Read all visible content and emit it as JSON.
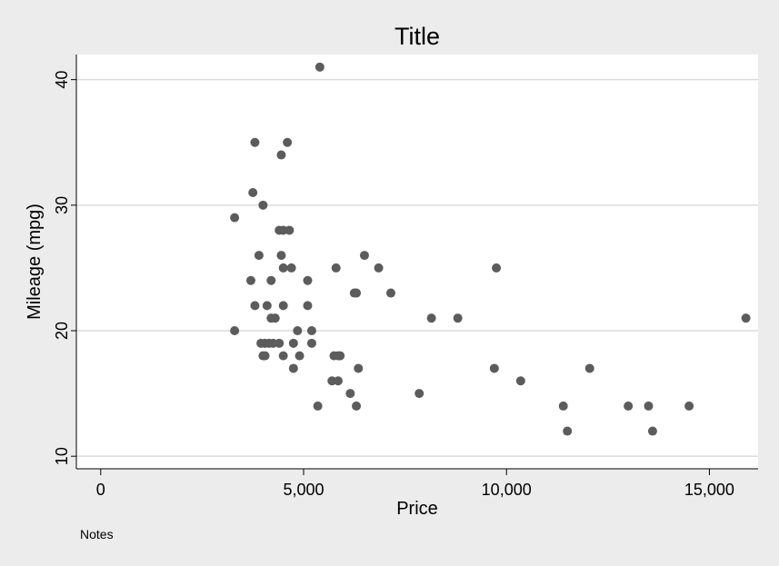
{
  "chart_data": {
    "type": "scatter",
    "title": "Title",
    "xlabel": "Price",
    "ylabel": "Mileage (mpg)",
    "note": "Notes",
    "xlim": [
      -600,
      16200
    ],
    "ylim": [
      9,
      42
    ],
    "xticks": [
      {
        "value": 0,
        "label": "0"
      },
      {
        "value": 5000,
        "label": "5,000"
      },
      {
        "value": 10000,
        "label": "10,000"
      },
      {
        "value": 15000,
        "label": "15,000"
      }
    ],
    "yticks": [
      {
        "value": 10,
        "label": "10"
      },
      {
        "value": 20,
        "label": "20"
      },
      {
        "value": 30,
        "label": "30"
      },
      {
        "value": 40,
        "label": "40"
      }
    ],
    "grid": "horizontal",
    "colors": {
      "marker": "#5c5c5c",
      "plot_bg": "#ffffff",
      "outer_bg": "#ececec",
      "grid": "#dcdcdc"
    },
    "series": [
      {
        "points": [
          [
            3300,
            29
          ],
          [
            3300,
            20
          ],
          [
            3700,
            24
          ],
          [
            3750,
            31
          ],
          [
            3800,
            35
          ],
          [
            3800,
            22
          ],
          [
            3900,
            26
          ],
          [
            3950,
            19
          ],
          [
            4000,
            30
          ],
          [
            4000,
            18
          ],
          [
            4050,
            18
          ],
          [
            4050,
            19
          ],
          [
            4100,
            22
          ],
          [
            4150,
            19
          ],
          [
            4200,
            24
          ],
          [
            4200,
            21
          ],
          [
            4250,
            19
          ],
          [
            4300,
            21
          ],
          [
            4400,
            28
          ],
          [
            4400,
            19
          ],
          [
            4450,
            34
          ],
          [
            4450,
            26
          ],
          [
            4500,
            28
          ],
          [
            4500,
            25
          ],
          [
            4500,
            22
          ],
          [
            4500,
            18
          ],
          [
            4600,
            35
          ],
          [
            4650,
            28
          ],
          [
            4700,
            25
          ],
          [
            4750,
            19
          ],
          [
            4750,
            17
          ],
          [
            4850,
            20
          ],
          [
            4900,
            18
          ],
          [
            5100,
            24
          ],
          [
            5100,
            22
          ],
          [
            5200,
            20
          ],
          [
            5200,
            19
          ],
          [
            5350,
            14
          ],
          [
            5400,
            41
          ],
          [
            5700,
            16
          ],
          [
            5750,
            18
          ],
          [
            5800,
            25
          ],
          [
            5850,
            18
          ],
          [
            5850,
            16
          ],
          [
            5900,
            18
          ],
          [
            6150,
            15
          ],
          [
            6250,
            23
          ],
          [
            6300,
            23
          ],
          [
            6300,
            14
          ],
          [
            6350,
            17
          ],
          [
            6500,
            26
          ],
          [
            6850,
            25
          ],
          [
            7150,
            23
          ],
          [
            7850,
            15
          ],
          [
            8150,
            21
          ],
          [
            8800,
            21
          ],
          [
            9700,
            17
          ],
          [
            9750,
            25
          ],
          [
            10350,
            16
          ],
          [
            11400,
            14
          ],
          [
            11500,
            12
          ],
          [
            12050,
            17
          ],
          [
            13000,
            14
          ],
          [
            13500,
            14
          ],
          [
            13600,
            12
          ],
          [
            14500,
            14
          ],
          [
            15900,
            21
          ]
        ]
      }
    ]
  }
}
